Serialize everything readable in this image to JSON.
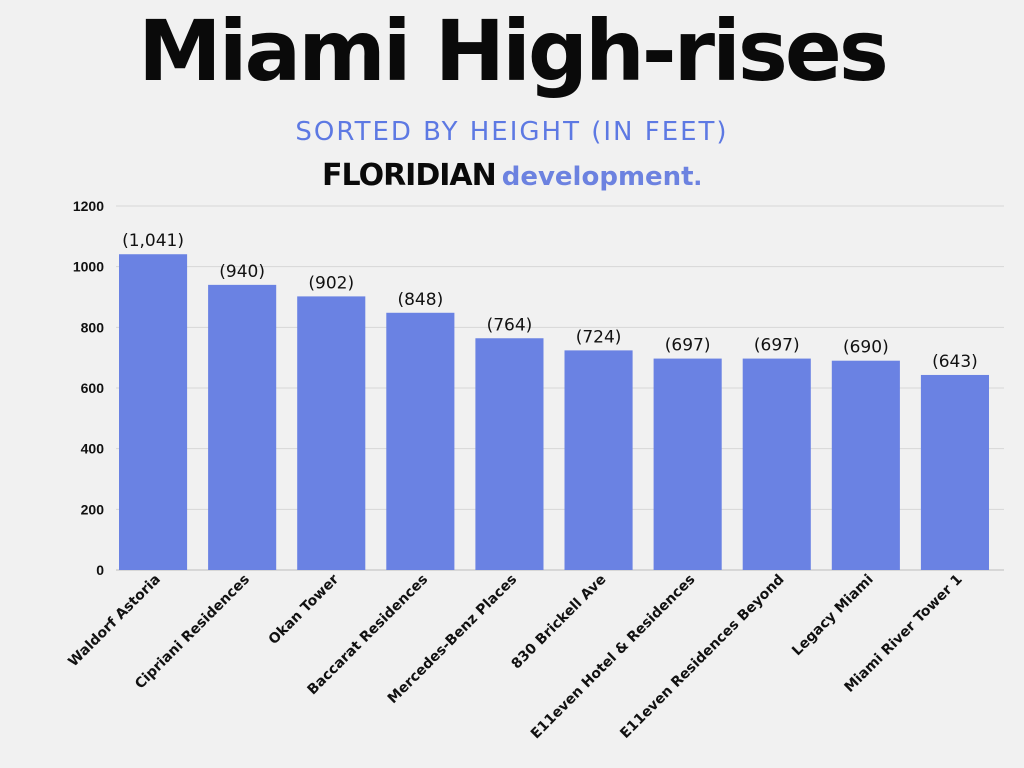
{
  "header": {
    "title": "Miami High-rises",
    "subtitle": "SORTED BY HEIGHT (IN FEET)",
    "brand_strong": "FLORIDIAN",
    "brand_light": "development",
    "brand_dot": "."
  },
  "colors": {
    "bar": "#6a82e3",
    "subtitle": "#5d79e3",
    "background": "#f1f1f1",
    "grid": "#d6d6d6"
  },
  "chart_data": {
    "type": "bar",
    "title": "",
    "xlabel": "",
    "ylabel": "",
    "ylim": [
      0,
      1200
    ],
    "yticks": [
      0,
      200,
      400,
      600,
      800,
      1000,
      1200
    ],
    "grid": true,
    "categories": [
      "Waldorf Astoria",
      "Cipriani Residences",
      "Okan Tower",
      "Baccarat Residences",
      "Mercedes-Benz Places",
      "830 Brickell Ave",
      "E11even Hotel & Residences",
      "E11even Residences Beyond",
      "Legacy Miami",
      "Miami River Tower 1"
    ],
    "values": [
      1041,
      940,
      902,
      848,
      764,
      724,
      697,
      697,
      690,
      643
    ],
    "data_labels": [
      "(1,041)",
      "(940)",
      "(902)",
      "(848)",
      "(764)",
      "(724)",
      "(697)",
      "(697)",
      "(690)",
      "(643)"
    ]
  }
}
